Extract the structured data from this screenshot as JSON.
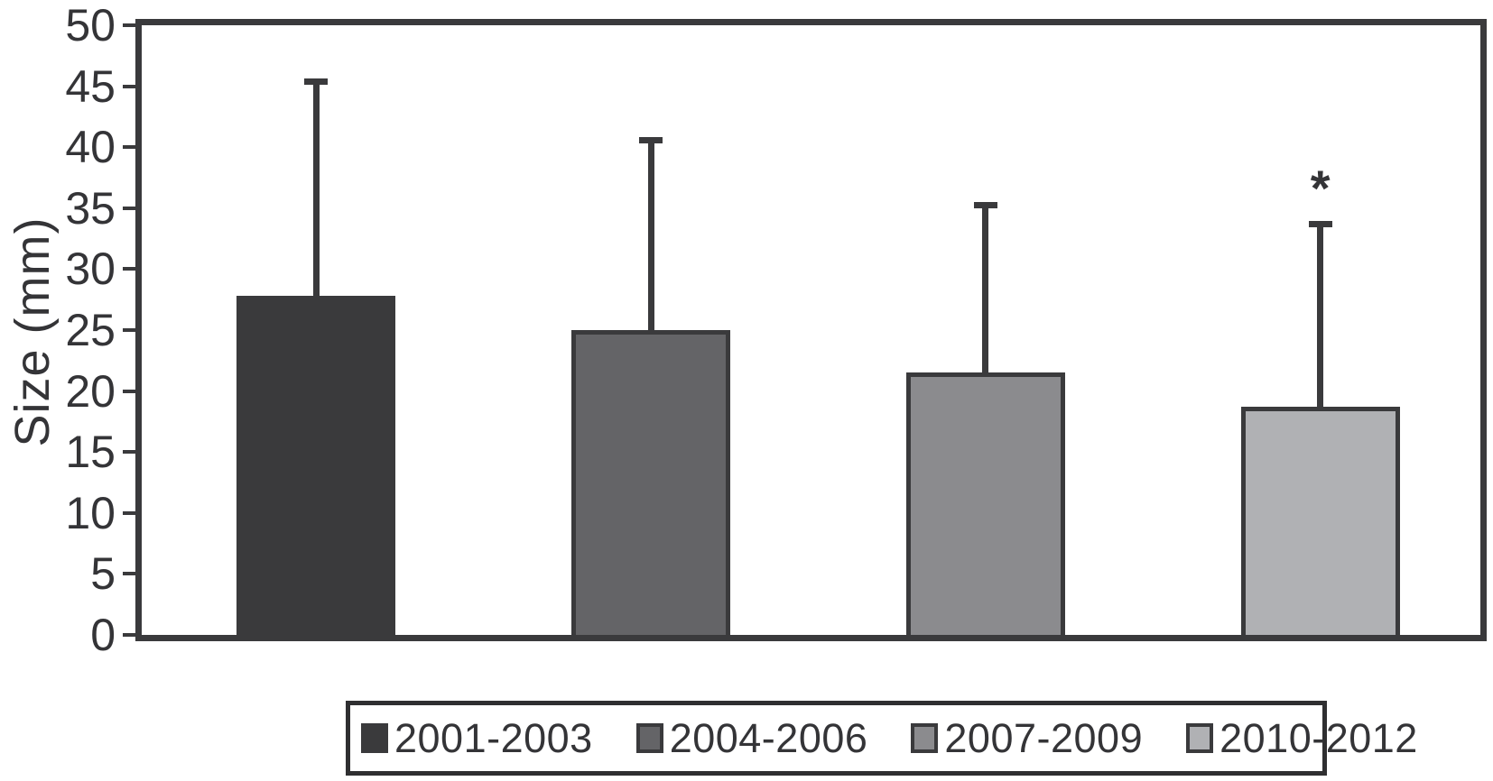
{
  "figure": {
    "background": "#ffffff",
    "axis_color": "#3a3a3c",
    "text_color": "#343437"
  },
  "chart_data": {
    "type": "bar",
    "title": "",
    "xlabel": "",
    "ylabel": "Size (mm)",
    "ylim": [
      0,
      50
    ],
    "yticks": [
      0,
      5,
      10,
      15,
      20,
      25,
      30,
      35,
      40,
      45,
      50
    ],
    "grid": false,
    "legend_position": "bottom",
    "error_bars": "upper only",
    "categories": [
      "2001-2003",
      "2004-2006",
      "2007-2009",
      "2010-2012"
    ],
    "series": [
      {
        "name": "2001-2003",
        "value": 27.8,
        "error_plus": 17.3,
        "color": "#3a3a3c",
        "marker": ""
      },
      {
        "name": "2004-2006",
        "value": 25.0,
        "error_plus": 15.3,
        "color": "#646467",
        "marker": ""
      },
      {
        "name": "2007-2009",
        "value": 21.5,
        "error_plus": 13.5,
        "color": "#8b8b8e",
        "marker": ""
      },
      {
        "name": "2010-2012",
        "value": 18.7,
        "error_plus": 14.7,
        "color": "#b0b1b4",
        "marker": "*"
      }
    ],
    "annotations": [
      {
        "text": "*",
        "category": "2010-2012",
        "position": "above error bar"
      }
    ]
  }
}
